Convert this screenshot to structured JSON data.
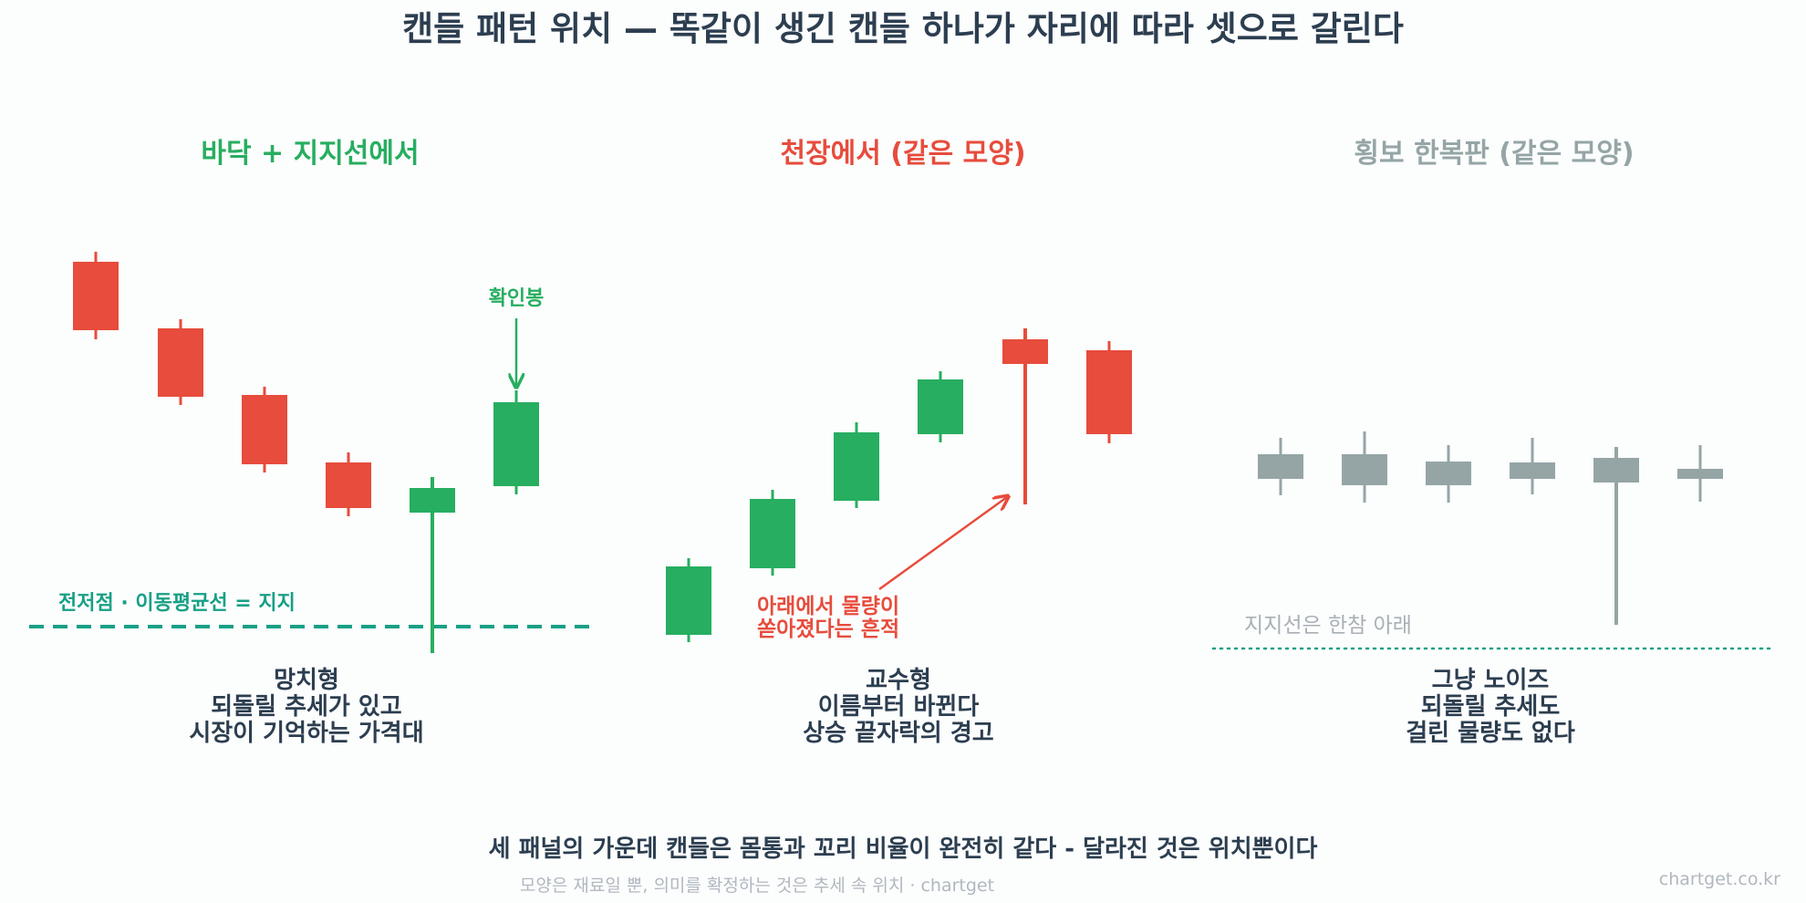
{
  "title": "캔들 패턴 위치 — 똑같이 생긴 캔들 하나가 자리에 따라 셋으로 갈린다",
  "colors": {
    "up": "#27ae60",
    "down": "#e74c3c",
    "neutral": "#95a5a6",
    "support": "#16a085",
    "text": "#2c3e50",
    "muted": "#b0b8bf",
    "muted_text": "#a7b0b6"
  },
  "panels": [
    {
      "heading": "바닥 + 지지선에서",
      "caption": [
        "망치형",
        "되돌릴 추세가 있고",
        "시장이 기억하는 가격대"
      ]
    },
    {
      "heading": "천장에서 (같은 모양)",
      "caption": [
        "교수형",
        "이름부터 바뀐다",
        "상승 끝자락의 경고"
      ]
    },
    {
      "heading": "횡보 한복판 (같은 모양)",
      "caption": [
        "그냥 노이즈",
        "되돌릴 추세도",
        "걸린 물량도 없다"
      ]
    }
  ],
  "annotations": {
    "confirm": "확인봉",
    "support_line": "전저점 · 이동평균선 = 지지",
    "tail_note": [
      "아래에서 물량이",
      "쏟아졌다는 흔적"
    ],
    "far_support": "지지선은 한참 아래"
  },
  "footer": {
    "main": "세 패널의 가운데 캔들은 몸통과 꼬리 비율이 완전히 같다 - 달라진 것은 위치뿐이다",
    "sub": "모양은 재료일 뿐, 의미를 확정하는 것은 추세 속 위치 · chartget",
    "watermark": "chartget.co.kr"
  }
}
